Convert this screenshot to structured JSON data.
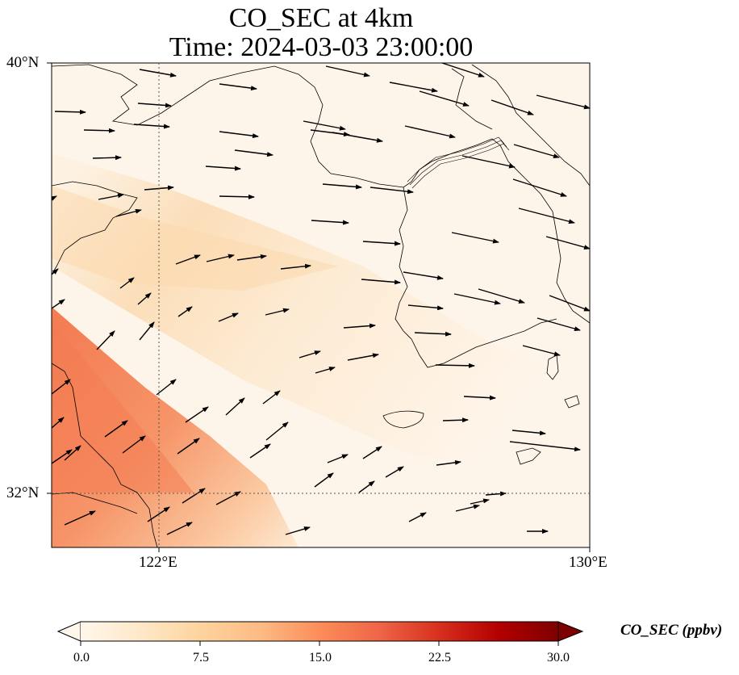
{
  "title": {
    "line1": "CO_SEC at 4km",
    "line2": "Time: 2024-03-03 23:00:00"
  },
  "axes": {
    "lat_ticks": [
      {
        "value": 40,
        "label": "40°N"
      },
      {
        "value": 32,
        "label": "32°N"
      }
    ],
    "lon_ticks": [
      {
        "value": 122,
        "label": "122°E"
      },
      {
        "value": 130,
        "label": "130°E"
      }
    ],
    "extent": {
      "lon_min": 120,
      "lon_max": 130,
      "lat_min": 31,
      "lat_max": 40
    },
    "gridlines": "dotted at 122°E and 32°N"
  },
  "colorbar": {
    "label": "CO_SEC (ppbv)",
    "ticks": [
      "0.0",
      "7.5",
      "15.0",
      "22.5",
      "30.0"
    ],
    "range": [
      0,
      30
    ],
    "colormap": "OrRd",
    "extend": "both",
    "colors": [
      "#fff7ec",
      "#fee8c8",
      "#fdd49e",
      "#fdbb84",
      "#fc8d59",
      "#ef6548",
      "#d7301f",
      "#b30000",
      "#7f0000"
    ]
  },
  "field": {
    "description_colors": {
      "background": "#fdf1e1",
      "band": "#fbd9ad",
      "plume": "#f58e62"
    }
  },
  "wind_vectors": "black quiver arrows, mostly westerly to southwesterly"
}
